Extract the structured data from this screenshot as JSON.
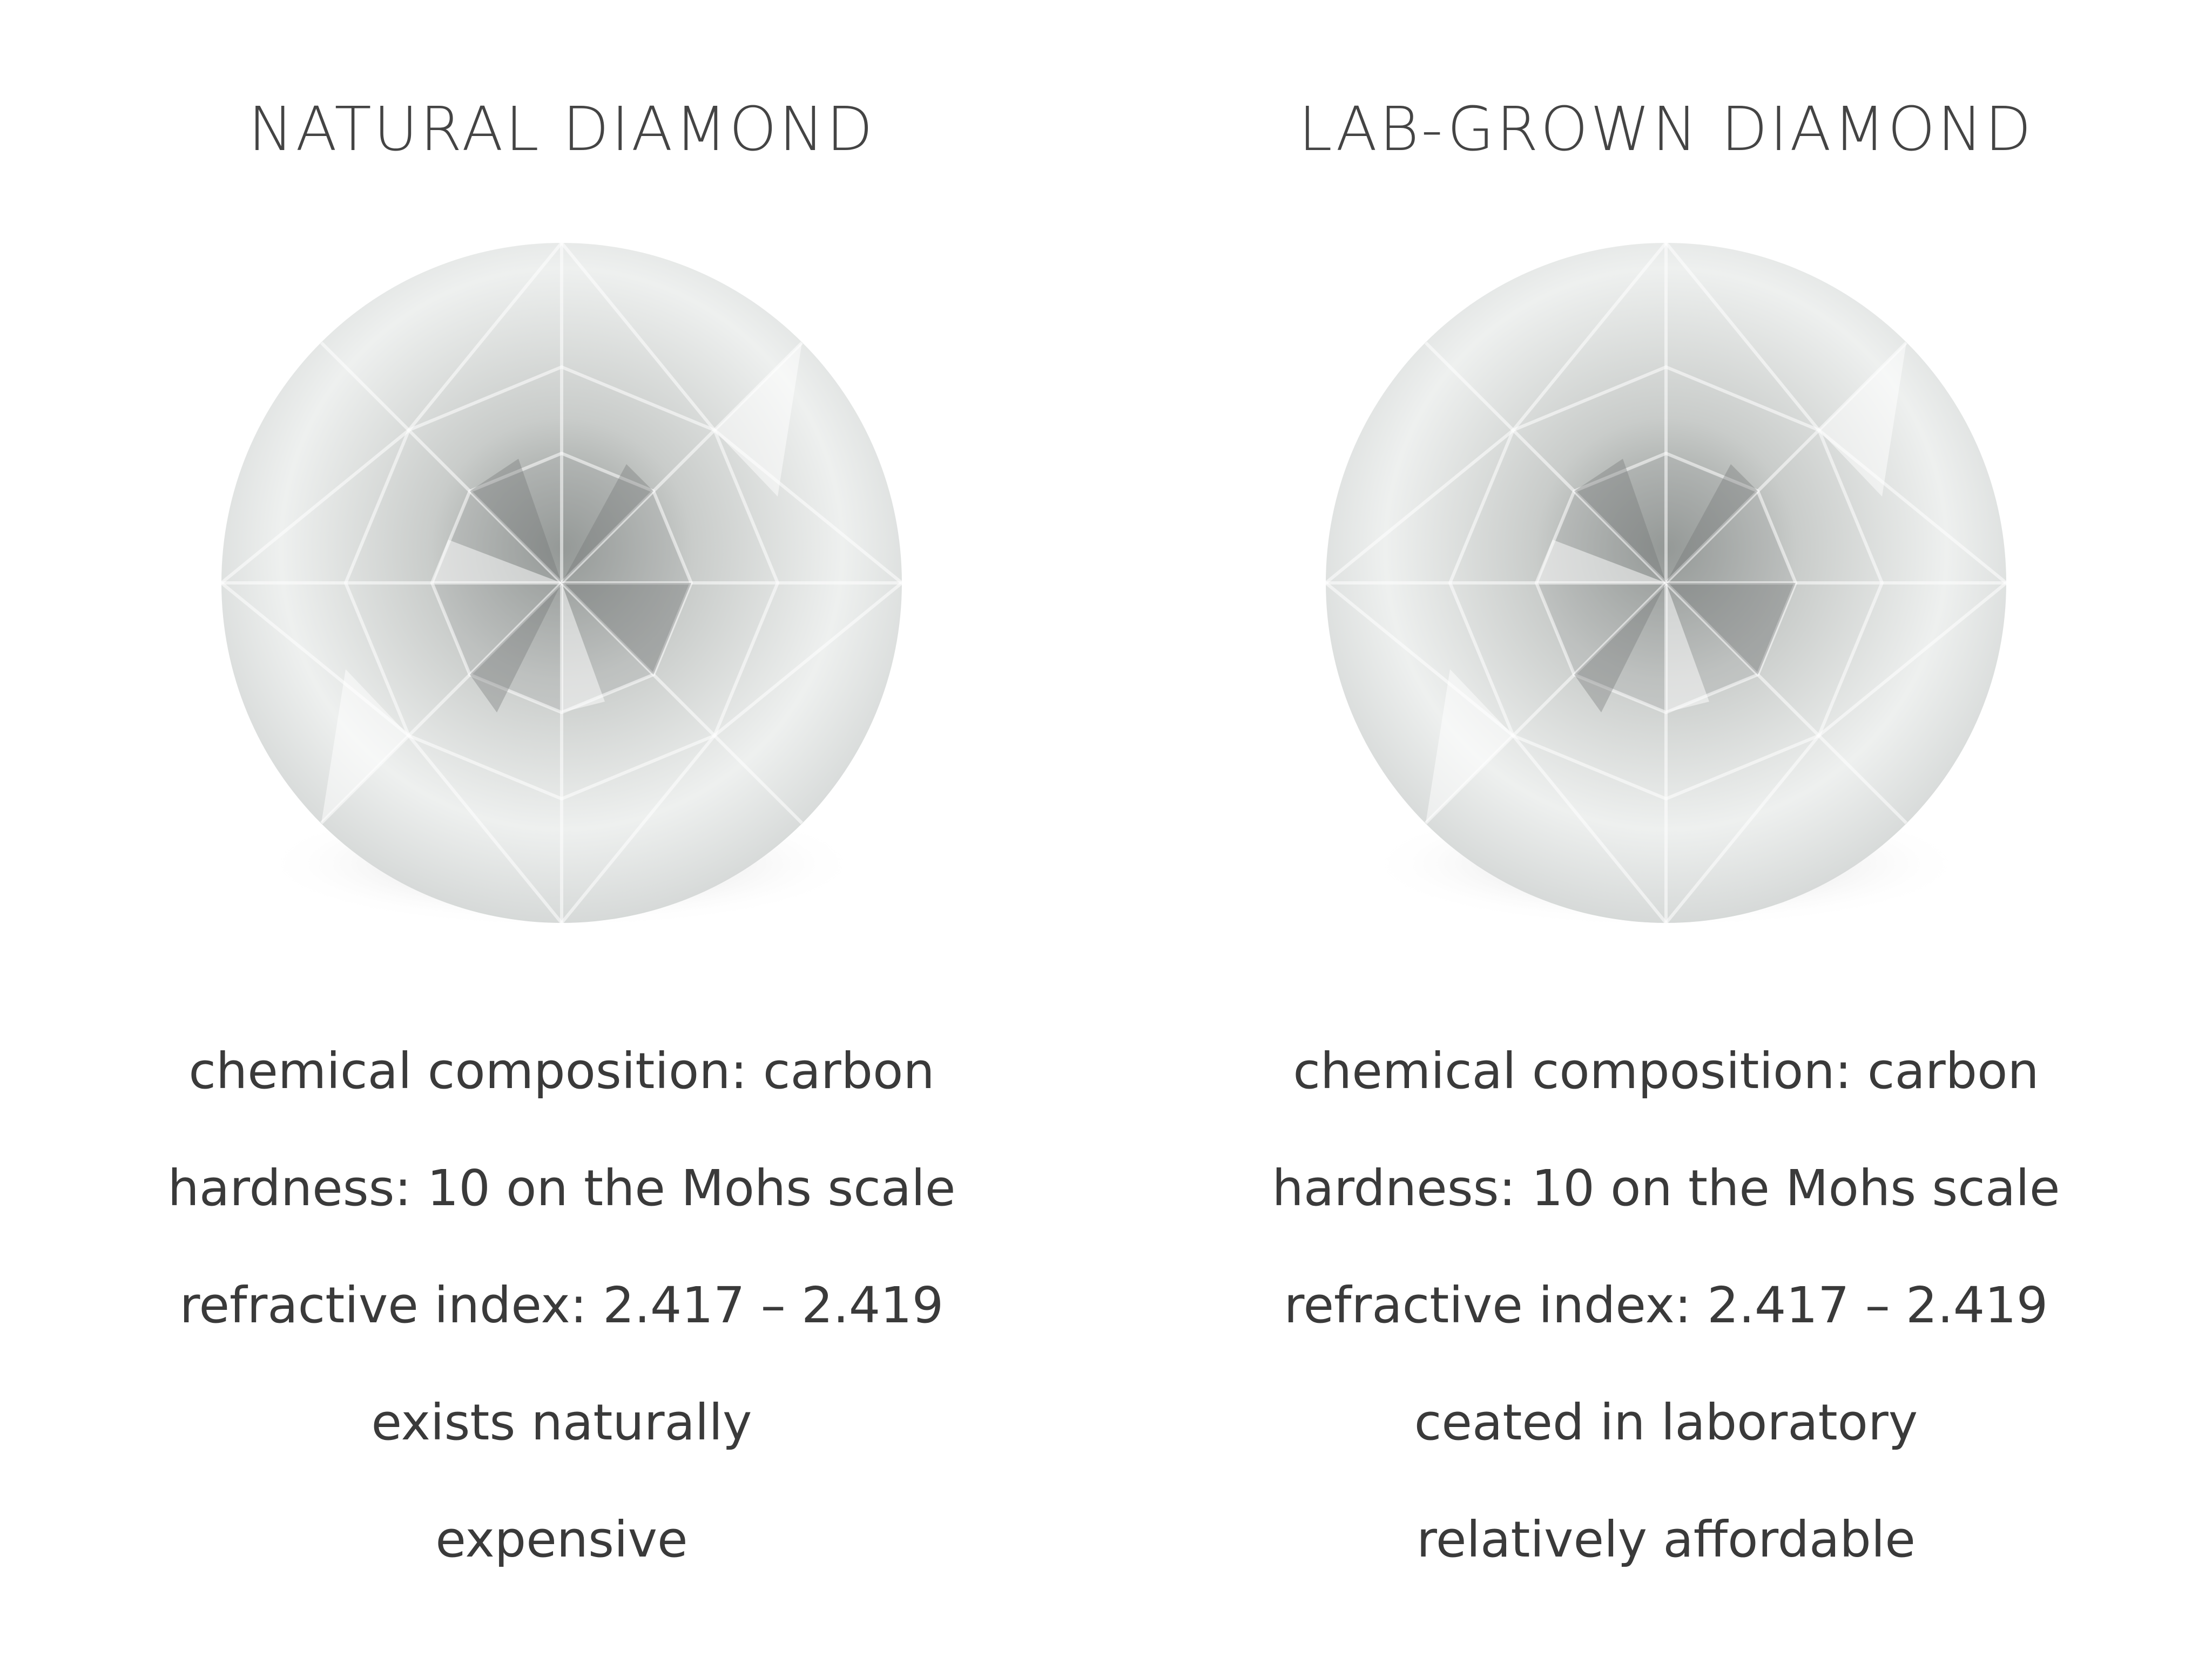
{
  "columns": [
    {
      "title": "NATURAL DIAMOND",
      "facts": [
        "chemical composition: carbon",
        "hardness: 10 on the Mohs scale",
        "refractive index: 2.417 – 2.419",
        "exists naturally",
        "expensive"
      ]
    },
    {
      "title": "LAB-GROWN DIAMOND",
      "facts": [
        "chemical composition: carbon",
        "hardness: 10 on the Mohs scale",
        "refractive index: 2.417 – 2.419",
        "ceated in laboratory",
        "relatively affordable"
      ]
    }
  ]
}
